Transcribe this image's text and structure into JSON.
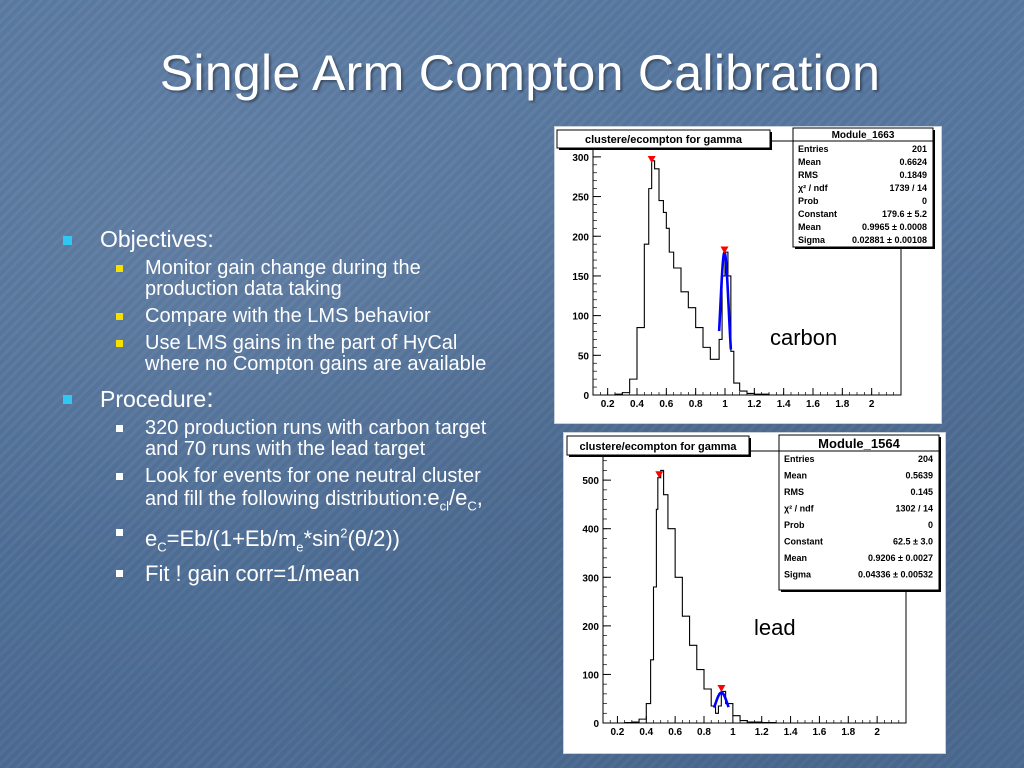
{
  "slide": {
    "title": "Single Arm Compton Calibration",
    "objectives": {
      "heading": "Objectives:",
      "items": [
        "Monitor gain change during the production data taking",
        "Compare with the LMS behavior",
        "Use LMS gains in the part of HyCal where no Compton gains are available"
      ]
    },
    "procedure": {
      "heading": "Procedure",
      "heading_colon": ":",
      "items": [
        "320 production runs with carbon target and 70 runs with the lead target",
        "Look for events for one neutral cluster and fill the following distribution:",
        "Fit ! gain corr=1/mean"
      ],
      "formula1": {
        "e": "e",
        "sub1": "cl",
        "slash": "/e",
        "sub2": "C",
        "tail": ","
      },
      "formula2": {
        "e": "e",
        "sub1": "C",
        "mid": "=Eb/(1+Eb/m",
        "sub2": "e",
        "mid2": "*sin",
        "sup": "2",
        "tail": "(θ/2))"
      }
    },
    "annotation_carbon": "carbon",
    "annotation_lead": "lead",
    "colors": {
      "background": "#56759c",
      "bullet_l1": "#2ec8f0",
      "bullet_l2": "#f5e000",
      "fit": "#0000ff",
      "marker": "#ff0000"
    }
  },
  "chart_data": [
    {
      "type": "histogram",
      "title": "clustere/ecompton for gamma",
      "stats_title": "Module_1663",
      "stats": [
        [
          "Entries",
          "201"
        ],
        [
          "Mean",
          "0.6624"
        ],
        [
          "RMS",
          "0.1849"
        ],
        [
          "χ² / ndf",
          "1739 / 14"
        ],
        [
          "Prob",
          "0"
        ],
        [
          "Constant",
          "179.6 ± 5.2"
        ],
        [
          "Mean",
          "0.9965 ± 0.0008"
        ],
        [
          "Sigma",
          "0.02881 ± 0.00108"
        ]
      ],
      "xlim": [
        0.1,
        2.2
      ],
      "ylim": [
        0,
        320
      ],
      "xticks": [
        0.2,
        0.4,
        0.6,
        0.8,
        1,
        1.2,
        1.4,
        1.6,
        1.8,
        2
      ],
      "xtick_labels": [
        "0.2",
        "0.4",
        "0.6",
        "0.8",
        "1",
        "1.2",
        "1.4",
        "1.6",
        "1.8",
        "2"
      ],
      "yticks": [
        0,
        50,
        100,
        150,
        200,
        250,
        300
      ],
      "ytick_labels": [
        "0",
        "50",
        "100",
        "150",
        "200",
        "250",
        "300"
      ],
      "x": [
        0.2,
        0.25,
        0.3,
        0.35,
        0.4,
        0.45,
        0.48,
        0.5,
        0.52,
        0.55,
        0.58,
        0.6,
        0.62,
        0.65,
        0.7,
        0.75,
        0.8,
        0.85,
        0.9,
        0.93,
        0.96,
        0.98,
        1.0,
        1.02,
        1.04,
        1.06,
        1.1,
        1.15,
        1.2,
        1.3,
        1.4
      ],
      "y": [
        0,
        1,
        3,
        20,
        85,
        190,
        260,
        295,
        285,
        245,
        230,
        210,
        180,
        160,
        130,
        110,
        85,
        60,
        45,
        45,
        70,
        150,
        180,
        150,
        55,
        15,
        5,
        2,
        1,
        0,
        0
      ],
      "fit": {
        "mean": 0.9965,
        "sigma": 0.02881,
        "constant": 179.6,
        "range": [
          0.96,
          1.04
        ]
      },
      "markers": [
        {
          "x": 0.5,
          "y": 296
        },
        {
          "x": 0.9965,
          "y": 182
        }
      ],
      "annotation": "carbon"
    },
    {
      "type": "histogram",
      "title": "clustere/ecompton for gamma",
      "stats_title": "Module_1564",
      "stats": [
        [
          "Entries",
          "204"
        ],
        [
          "Mean",
          "0.5639"
        ],
        [
          "RMS",
          "0.145"
        ],
        [
          "χ² / ndf",
          "1302 / 14"
        ],
        [
          "Prob",
          "0"
        ],
        [
          "Constant",
          "62.5 ± 3.0"
        ],
        [
          "Mean",
          "0.9206 ± 0.0027"
        ],
        [
          "Sigma",
          "0.04336 ± 0.00532"
        ]
      ],
      "xlim": [
        0.1,
        2.2
      ],
      "ylim": [
        0,
        560
      ],
      "xticks": [
        0.2,
        0.4,
        0.6,
        0.8,
        1,
        1.2,
        1.4,
        1.6,
        1.8,
        2
      ],
      "xtick_labels": [
        "0.2",
        "0.4",
        "0.6",
        "0.8",
        "1",
        "1.2",
        "1.4",
        "1.6",
        "1.8",
        "2"
      ],
      "yticks": [
        0,
        100,
        200,
        300,
        400,
        500
      ],
      "ytick_labels": [
        "0",
        "100",
        "200",
        "300",
        "400",
        "500"
      ],
      "x": [
        0.2,
        0.25,
        0.3,
        0.35,
        0.4,
        0.43,
        0.45,
        0.47,
        0.48,
        0.5,
        0.52,
        0.55,
        0.6,
        0.65,
        0.7,
        0.75,
        0.8,
        0.85,
        0.88,
        0.9,
        0.92,
        0.95,
        1.0,
        1.05,
        1.1,
        1.2,
        1.3,
        1.4
      ],
      "y": [
        0,
        1,
        2,
        8,
        40,
        130,
        280,
        440,
        505,
        520,
        470,
        400,
        300,
        220,
        160,
        110,
        70,
        35,
        20,
        35,
        65,
        40,
        15,
        5,
        2,
        1,
        0,
        0
      ],
      "fit": {
        "mean": 0.9206,
        "sigma": 0.04336,
        "constant": 62.5,
        "range": [
          0.87,
          0.97
        ]
      },
      "markers": [
        {
          "x": 0.49,
          "y": 510
        },
        {
          "x": 0.9206,
          "y": 70
        }
      ],
      "annotation": "lead"
    }
  ]
}
